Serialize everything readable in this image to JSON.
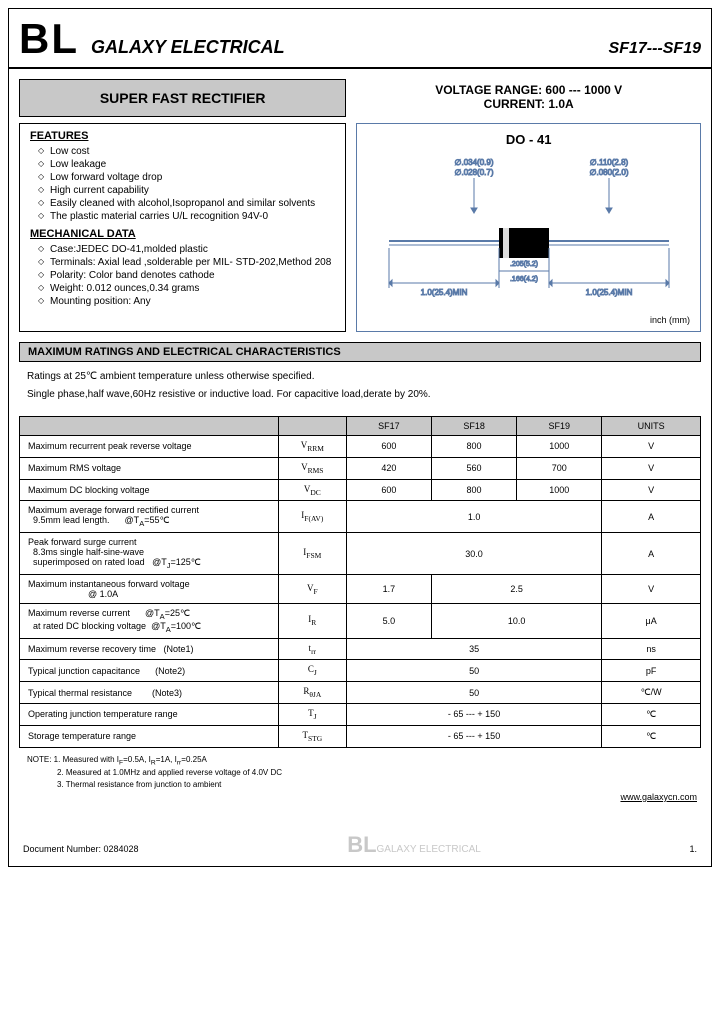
{
  "header": {
    "logo": "BL",
    "company": "GALAXY ELECTRICAL",
    "partno": "SF17---SF19"
  },
  "title": "SUPER  FAST  RECTIFIER",
  "spec": {
    "line1": "VOLTAGE  RANGE:  600 --- 1000 V",
    "line2": "CURRENT:  1.0A"
  },
  "features": {
    "heading": "FEATURES",
    "items": [
      "Low cost",
      "Low leakage",
      "Low forward voltage drop",
      "High current capability",
      "Easily cleaned with alcohol,Isopropanol and similar solvents",
      "The plastic material carries U/L recognition 94V-0"
    ]
  },
  "mechanical": {
    "heading": "MECHANICAL DATA",
    "items": [
      "Case:JEDEC DO-41,molded plastic",
      "Terminals: Axial lead ,solderable per MIL- STD-202,Method 208",
      "Polarity: Color band denotes cathode",
      "Weight: 0.012 ounces,0.34 grams",
      "Mounting position: Any"
    ]
  },
  "diagram": {
    "title": "DO - 41",
    "dim1a": "∅.034(0.9)",
    "dim1b": "∅.028(0.7)",
    "dim2a": "∅.110(2.8)",
    "dim2b": "∅.080(2.0)",
    "len_left": "1.0(25.4)MIN",
    "body_a": ".205(5.2)",
    "body_b": ".166(4.2)",
    "len_right": "1.0(25.4)MIN",
    "unit": "inch (mm)"
  },
  "section_header": "MAXIMUM RATINGS AND ELECTRICAL CHARACTERISTICS",
  "ratings_text": {
    "line1": "Ratings at 25℃ ambient temperature unless otherwise specified.",
    "line2": "Single phase,half wave,60Hz resistive or inductive load. For capacitive load,derate by 20%."
  },
  "table": {
    "headers": [
      "",
      "",
      "SF17",
      "SF18",
      "SF19",
      "UNITS"
    ],
    "rows": [
      {
        "param": "Maximum recurrent peak reverse voltage",
        "sym": "V<sub>RRM</sub>",
        "v": [
          "600",
          "800",
          "1000"
        ],
        "unit": "V"
      },
      {
        "param": "Maximum RMS voltage",
        "sym": "V<sub>RMS</sub>",
        "v": [
          "420",
          "560",
          "700"
        ],
        "unit": "V"
      },
      {
        "param": "Maximum DC blocking voltage",
        "sym": "V<sub>DC</sub>",
        "v": [
          "600",
          "800",
          "1000"
        ],
        "unit": "V"
      },
      {
        "param": "Maximum average forward rectified current<br>&nbsp;&nbsp;9.5mm lead length.&nbsp;&nbsp;&nbsp;&nbsp;&nbsp;&nbsp;@T<sub>A</sub>=55℃",
        "sym": "I<sub>F(AV)</sub>",
        "span": "1.0",
        "unit": "A"
      },
      {
        "param": "Peak forward surge current<br>&nbsp;&nbsp;8.3ms single half-sine-wave<br>&nbsp;&nbsp;superimposed on rated load&nbsp;&nbsp;&nbsp;@T<sub>J</sub>=125℃",
        "sym": "I<sub>FSM</sub>",
        "span": "30.0",
        "unit": "A"
      },
      {
        "param": "Maximum instantaneous forward voltage<br>&nbsp;&nbsp;&nbsp;&nbsp;&nbsp;&nbsp;&nbsp;&nbsp;&nbsp;&nbsp;&nbsp;&nbsp;&nbsp;&nbsp;&nbsp;&nbsp;&nbsp;&nbsp;&nbsp;&nbsp;&nbsp;&nbsp;&nbsp;&nbsp;@ 1.0A",
        "sym": "V<sub>F</sub>",
        "v2": [
          "1.7",
          "2.5"
        ],
        "unit": "V"
      },
      {
        "param": "Maximum reverse current&nbsp;&nbsp;&nbsp;&nbsp;&nbsp;&nbsp;@T<sub>A</sub>=25℃<br>&nbsp;&nbsp;at rated DC blocking voltage&nbsp;&nbsp;@T<sub>A</sub>=100℃",
        "sym": "I<sub>R</sub>",
        "v2": [
          "5.0",
          "10.0"
        ],
        "unit": "μA"
      },
      {
        "param": "Maximum reverse recovery time&nbsp;&nbsp;&nbsp;(Note1)",
        "sym": "t<sub>rr</sub>",
        "span": "35",
        "unit": "ns"
      },
      {
        "param": "Typical junction capacitance&nbsp;&nbsp;&nbsp;&nbsp;&nbsp;&nbsp;(Note2)",
        "sym": "C<sub>J</sub>",
        "span": "50",
        "unit": "pF"
      },
      {
        "param": "Typical thermal resistance&nbsp;&nbsp;&nbsp;&nbsp;&nbsp;&nbsp;&nbsp;&nbsp;(Note3)",
        "sym": "R<sub>θJA</sub>",
        "span": "50",
        "unit": "℃/W"
      },
      {
        "param": "Operating junction temperature range",
        "sym": "T<sub>J</sub>",
        "span": "- 65 --- + 150",
        "unit": "℃"
      },
      {
        "param": "Storage temperature range",
        "sym": "T<sub>STG</sub>",
        "span": "- 65 --- + 150",
        "unit": "℃"
      }
    ]
  },
  "notes": {
    "line1": "NOTE: 1. Measured with I<sub>F</sub>=0.5A, I<sub>R</sub>=1A, I<sub>rr</sub>=0.25A",
    "line2": "2. Measured at 1.0MHz and applied reverse voltage of 4.0V DC",
    "line3": "3. Thermal resistance from junction to ambient"
  },
  "url": "www.galaxycn.com",
  "footer": {
    "docnum": "Document Number: 0284028",
    "logo": "BL",
    "company": "GALAXY ELECTRICAL",
    "page": "1."
  },
  "colors": {
    "grey": "#c8c8c8",
    "blue": "#5a7aa8"
  }
}
